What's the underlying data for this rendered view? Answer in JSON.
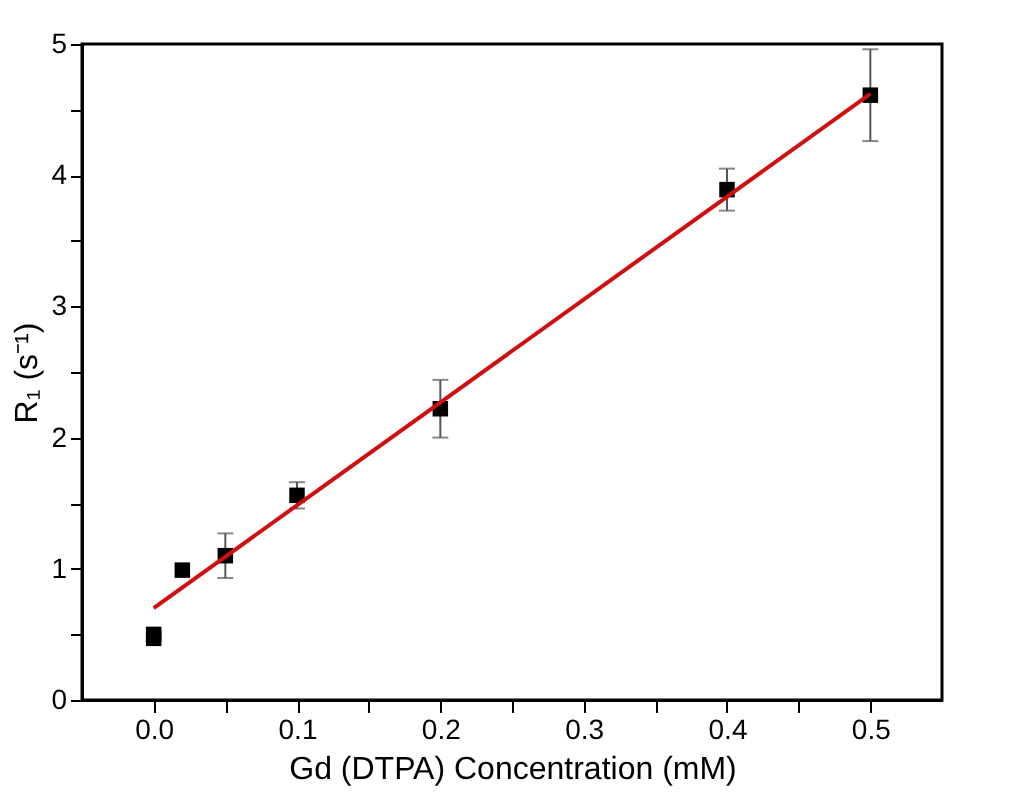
{
  "chart_data": {
    "type": "scatter",
    "xlabel": "Gd (DTPA) Concentration (mM)",
    "ylabel": "R₁ (s⁻¹)",
    "x": [
      0.0,
      0.0,
      0.02,
      0.05,
      0.1,
      0.2,
      0.4,
      0.5
    ],
    "series": [
      {
        "color": "#000000",
        "marker": "square",
        "values": [
          0.47,
          0.5,
          0.99,
          1.1,
          1.56,
          2.22,
          3.89,
          4.61
        ],
        "errors": [
          null,
          null,
          null,
          0.17,
          0.1,
          0.22,
          0.16,
          0.35
        ]
      },
      {
        "type": "line",
        "color": "#d01010",
        "x": [
          0.0,
          0.5
        ],
        "values": [
          0.7,
          4.62
        ],
        "line_style": "solid",
        "marker": "none"
      }
    ],
    "xlim": [
      -0.05,
      0.55
    ],
    "ylim": [
      0,
      5
    ],
    "xticks": [
      {
        "value": 0.0,
        "label": "0.0"
      },
      {
        "value": 0.05,
        "label": null
      },
      {
        "value": 0.1,
        "label": "0.1"
      },
      {
        "value": 0.15,
        "label": null
      },
      {
        "value": 0.2,
        "label": "0.2"
      },
      {
        "value": 0.25,
        "label": null
      },
      {
        "value": 0.3,
        "label": "0.3"
      },
      {
        "value": 0.35,
        "label": null
      },
      {
        "value": 0.4,
        "label": "0.4"
      },
      {
        "value": 0.45,
        "label": null
      },
      {
        "value": 0.5,
        "label": "0.5"
      }
    ],
    "yticks": [
      0,
      {
        "value": 0.5,
        "label": null
      },
      1,
      {
        "value": 1.5,
        "label": null
      },
      2,
      {
        "value": 2.5,
        "label": null
      },
      3,
      {
        "value": 3.5,
        "label": null
      },
      4,
      {
        "value": 4.5,
        "label": null
      },
      5
    ],
    "grid": false
  }
}
